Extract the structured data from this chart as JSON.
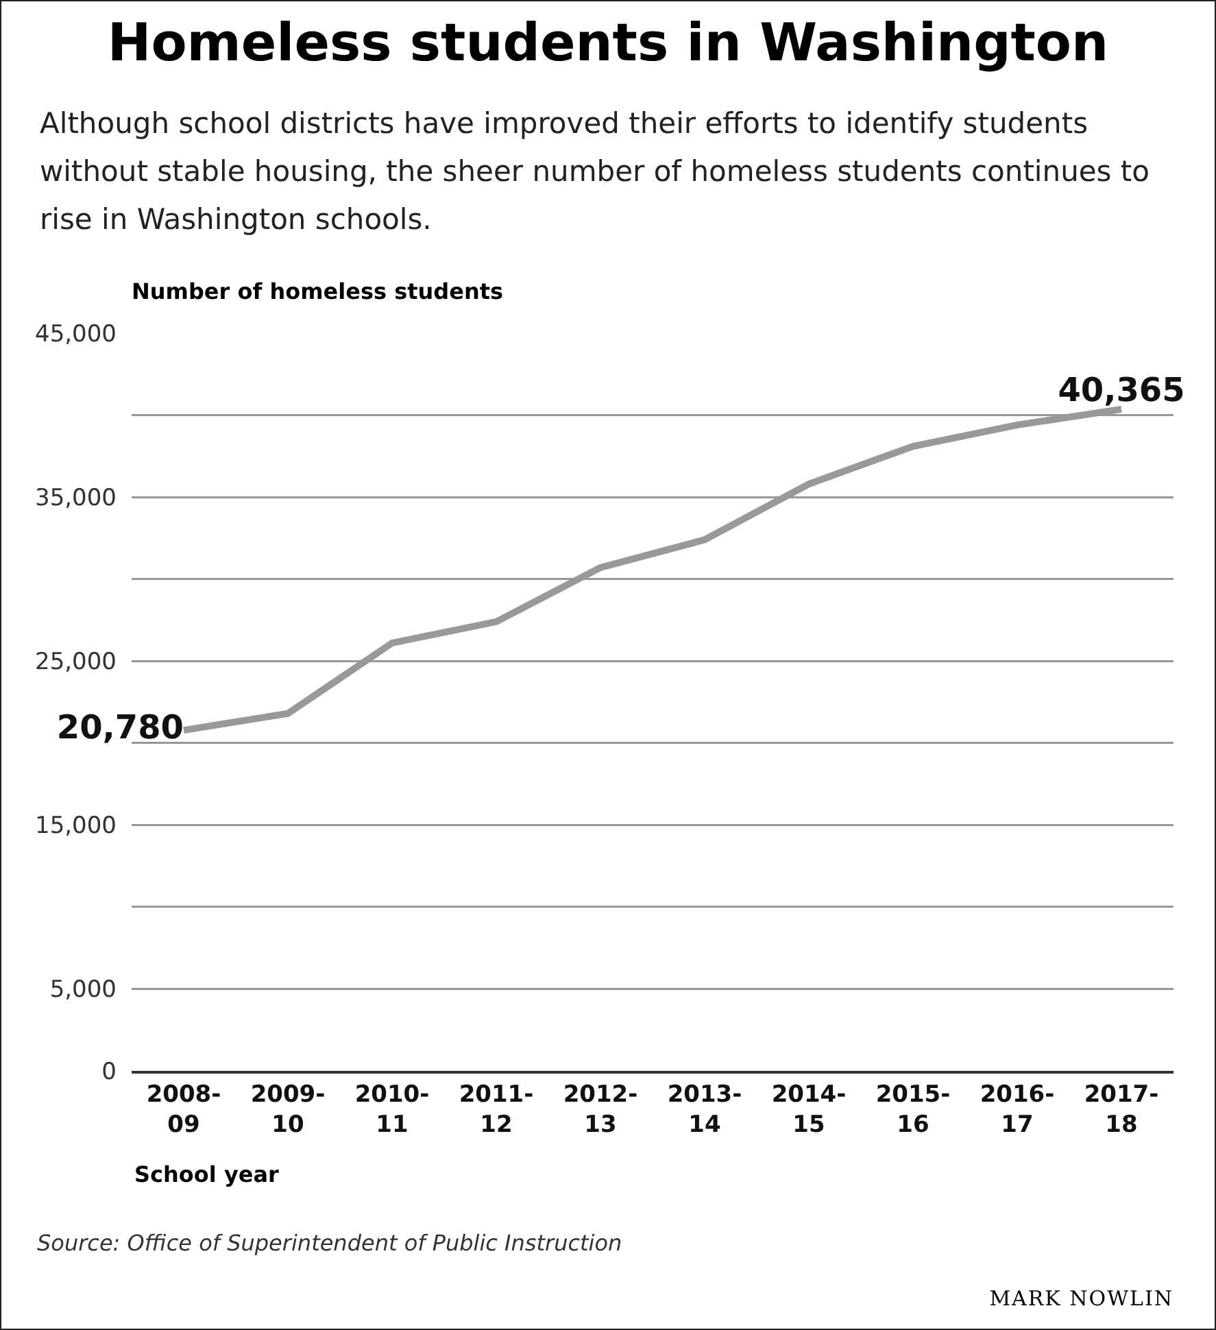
{
  "chart_data": {
    "type": "line",
    "title": "Homeless students in Washington",
    "subtitle": "Although school districts have improved their efforts to identify students without stable housing, the sheer number of homeless students continues to rise in Washington schools.",
    "ylabel": "Number of homeless students",
    "xlabel": "School year",
    "categories": [
      "2008-09",
      "2009-10",
      "2010-11",
      "2011-12",
      "2012-13",
      "2013-14",
      "2014-15",
      "2015-16",
      "2016-17",
      "2017-18"
    ],
    "series": [
      {
        "color": "#999999",
        "values": [
          20780,
          21800,
          26100,
          27400,
          30700,
          32400,
          35800,
          38100,
          39400,
          40365
        ],
        "value_labels": [
          "20,780",
          null,
          null,
          null,
          null,
          null,
          null,
          null,
          null,
          "40,365"
        ]
      }
    ],
    "ylim": [
      0,
      45000
    ],
    "yticks": [
      {
        "value": 0,
        "label": "0"
      },
      {
        "value": 5000,
        "label": "5,000"
      },
      {
        "value": 10000,
        "label": null
      },
      {
        "value": 15000,
        "label": "15,000"
      },
      {
        "value": 20000,
        "label": null
      },
      {
        "value": 25000,
        "label": "25,000"
      },
      {
        "value": 30000,
        "label": null
      },
      {
        "value": 35000,
        "label": "35,000"
      },
      {
        "value": 40000,
        "label": null
      },
      {
        "value": 45000,
        "label": "45,000"
      }
    ],
    "grid": "y",
    "marker": "none",
    "line_style": "solid",
    "legend": false,
    "annotations": [
      "Source: Office of Superintendent of Public Instruction",
      "MARK NOWLIN"
    ]
  }
}
